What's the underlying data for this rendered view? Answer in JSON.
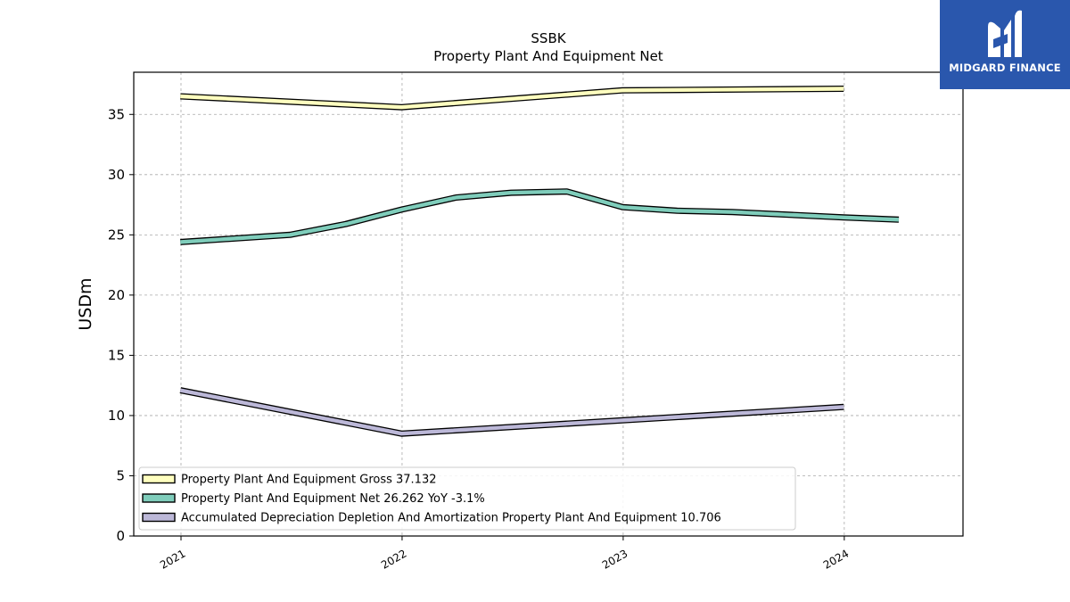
{
  "logo": {
    "text": "MIDGARD FINANCE",
    "icon": "midgard-m-icon",
    "bg_color": "#2a57ad"
  },
  "chart_data": {
    "type": "line",
    "title": "SSBK",
    "subtitle": "Property Plant And Equipment Net",
    "ylabel": "USDm",
    "xlabel": "",
    "xlim": [
      "2020-10-15",
      "2024-07-15"
    ],
    "ylim": [
      0,
      38.5
    ],
    "yticks": [
      0,
      5,
      10,
      15,
      20,
      25,
      30,
      35
    ],
    "xticks": [
      {
        "label": "2021",
        "date": "2021-01-01"
      },
      {
        "label": "2022",
        "date": "2022-01-01"
      },
      {
        "label": "2023",
        "date": "2023-01-01"
      },
      {
        "label": "2024",
        "date": "2024-01-01"
      }
    ],
    "grid": true,
    "legend_position": "lower-left",
    "series": [
      {
        "name": "Property Plant And Equipment Gross",
        "legend": "Property Plant And Equipment Gross  37.132",
        "color": "#ffffbf",
        "points": [
          {
            "x": "2020-12-31",
            "y": 36.5
          },
          {
            "x": "2021-12-31",
            "y": 35.6
          },
          {
            "x": "2022-12-31",
            "y": 37.0
          },
          {
            "x": "2023-12-31",
            "y": 37.13
          }
        ]
      },
      {
        "name": "Property Plant And Equipment Net",
        "legend": "Property Plant And Equipment Net  26.262 YoY -3.1%",
        "color": "#7fcdbb",
        "points": [
          {
            "x": "2020-12-31",
            "y": 24.4
          },
          {
            "x": "2021-06-30",
            "y": 25.0
          },
          {
            "x": "2021-09-30",
            "y": 25.9
          },
          {
            "x": "2021-12-31",
            "y": 27.1
          },
          {
            "x": "2022-03-31",
            "y": 28.1
          },
          {
            "x": "2022-06-30",
            "y": 28.5
          },
          {
            "x": "2022-09-30",
            "y": 28.6
          },
          {
            "x": "2022-12-31",
            "y": 27.3
          },
          {
            "x": "2023-03-31",
            "y": 27.0
          },
          {
            "x": "2023-06-30",
            "y": 26.9
          },
          {
            "x": "2023-12-31",
            "y": 26.45
          },
          {
            "x": "2024-03-31",
            "y": 26.26
          }
        ]
      },
      {
        "name": "Accumulated Depreciation Depletion And Amortization Property Plant And Equipment",
        "legend": "Accumulated Depreciation Depletion And Amortization Property Plant And Equipment  10.706",
        "color": "#bcb8d8",
        "points": [
          {
            "x": "2020-12-31",
            "y": 12.1
          },
          {
            "x": "2021-12-31",
            "y": 8.5
          },
          {
            "x": "2022-12-31",
            "y": 9.6
          },
          {
            "x": "2023-12-31",
            "y": 10.71
          }
        ]
      }
    ]
  }
}
